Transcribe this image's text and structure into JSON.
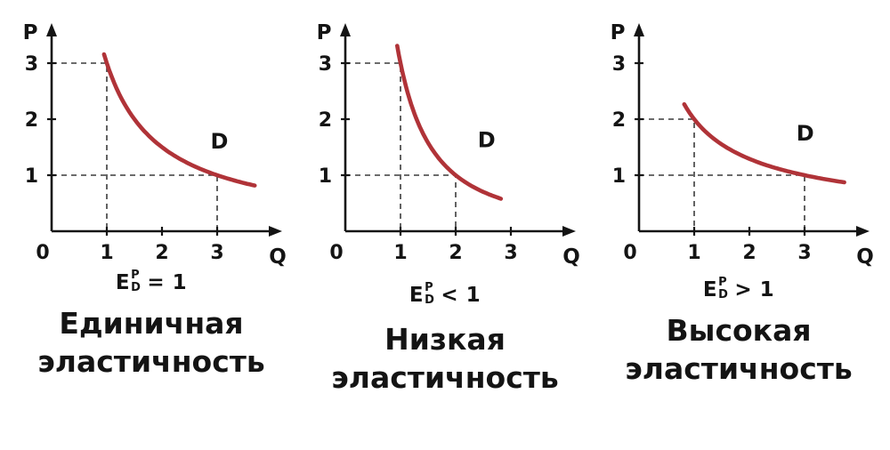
{
  "page": {
    "background": "#ffffff",
    "text_color": "#141414"
  },
  "chart_data": [
    {
      "type": "line",
      "title": "Единичная эластичность",
      "caption_line1": "Единичная",
      "caption_line2": "эластичность",
      "formula": {
        "base": "E",
        "sup": "P",
        "sub": "D",
        "relation": "= 1"
      },
      "xlabel": "Q",
      "ylabel": "P",
      "x_ticks": [
        "0",
        "1",
        "2",
        "3"
      ],
      "y_ticks": [
        "1",
        "2",
        "3"
      ],
      "xlim": [
        0,
        4
      ],
      "ylim": [
        0,
        3.7
      ],
      "grid": false,
      "curve": {
        "label": "D",
        "color": "#b03338",
        "function": "P = 3 / Q",
        "coefficient": 3,
        "exponent": 1,
        "q_start": 0.95,
        "q_end": 3.68,
        "label_q": 2.88,
        "label_p": 1.48
      },
      "guides": [
        {
          "q": 1,
          "p": 3
        },
        {
          "q": 3,
          "p": 1
        }
      ],
      "key_points": [
        {
          "q": 1,
          "p": 3
        },
        {
          "q": 3,
          "p": 1
        }
      ]
    },
    {
      "type": "line",
      "title": "Низкая эластичность",
      "caption_line1": "Низкая",
      "caption_line2": "эластичность",
      "formula": {
        "base": "E",
        "sup": "P",
        "sub": "D",
        "relation": "< 1"
      },
      "xlabel": "Q",
      "ylabel": "P",
      "x_ticks": [
        "0",
        "1",
        "2",
        "3"
      ],
      "y_ticks": [
        "1",
        "2",
        "3"
      ],
      "xlim": [
        0,
        4
      ],
      "ylim": [
        0,
        3.7
      ],
      "grid": false,
      "curve": {
        "label": "D",
        "color": "#b03338",
        "function": "P = 3 / Q^1.585",
        "coefficient": 3,
        "exponent": 1.585,
        "q_start": 0.94,
        "q_end": 2.82,
        "label_q": 2.4,
        "label_p": 1.5
      },
      "guides": [
        {
          "q": 1,
          "p": 3
        },
        {
          "q": 2,
          "p": 1
        }
      ],
      "key_points": [
        {
          "q": 1,
          "p": 3
        },
        {
          "q": 2,
          "p": 1
        }
      ]
    },
    {
      "type": "line",
      "title": "Высокая эластичность",
      "caption_line1": "Высокая",
      "caption_line2": "эластичность",
      "formula": {
        "base": "E",
        "sup": "P",
        "sub": "D",
        "relation": "> 1"
      },
      "xlabel": "Q",
      "ylabel": "P",
      "x_ticks": [
        "0",
        "1",
        "2",
        "3"
      ],
      "y_ticks": [
        "1",
        "2",
        "3"
      ],
      "xlim": [
        0,
        4
      ],
      "ylim": [
        0,
        3.7
      ],
      "grid": false,
      "curve": {
        "label": "D",
        "color": "#b03338",
        "function": "P = 2 / Q^0.631",
        "coefficient": 2,
        "exponent": 0.631,
        "q_start": 0.82,
        "q_end": 3.72,
        "label_q": 2.85,
        "label_p": 1.62
      },
      "guides": [
        {
          "q": 1,
          "p": 2
        },
        {
          "q": 3,
          "p": 1
        }
      ],
      "key_points": [
        {
          "q": 1,
          "p": 2
        },
        {
          "q": 3,
          "p": 1
        }
      ]
    }
  ]
}
